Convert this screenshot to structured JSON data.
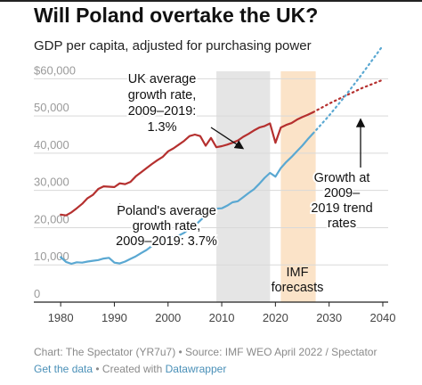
{
  "title": "Will Poland overtake the UK?",
  "subtitle": "GDP per capita, adjusted for purchasing power",
  "colors": {
    "uk": "#b5302f",
    "poland": "#5aa8d2",
    "band_gray": "#e5e5e5",
    "band_orange": "#fbe3c8",
    "grid": "#d9d9d9"
  },
  "chart_data": {
    "type": "line",
    "xlabel": "",
    "ylabel": "",
    "xlim": [
      1975,
      2041
    ],
    "ylim": [
      0,
      62000
    ],
    "x_ticks": [
      "1980",
      "1990",
      "2000",
      "2010",
      "2020",
      "2030",
      "2040"
    ],
    "y_ticks": [
      "0",
      "10,000",
      "20,000",
      "30,000",
      "40,000",
      "50,000",
      "$60,000"
    ],
    "y_tick_values": [
      0,
      10000,
      20000,
      30000,
      40000,
      50000,
      60000
    ],
    "shaded_periods": [
      {
        "from": 2009,
        "to": 2019,
        "color": "gray"
      },
      {
        "from": 2021,
        "to": 2027.5,
        "color": "orange"
      }
    ],
    "series": [
      {
        "name": "UK",
        "style": "solid",
        "x": [
          1980,
          1981,
          1982,
          1983,
          1984,
          1985,
          1986,
          1987,
          1988,
          1989,
          1990,
          1991,
          1992,
          1993,
          1994,
          1995,
          1996,
          1997,
          1998,
          1999,
          2000,
          2001,
          2002,
          2003,
          2004,
          2005,
          2006,
          2007,
          2008,
          2009,
          2010,
          2011,
          2012,
          2013,
          2014,
          2015,
          2016,
          2017,
          2018,
          2019,
          2020,
          2021,
          2022,
          2023,
          2024,
          2025,
          2026,
          2027
        ],
        "y": [
          23500,
          23300,
          24100,
          25200,
          26400,
          27900,
          28800,
          30400,
          31100,
          31000,
          30900,
          31900,
          31700,
          32300,
          33800,
          34900,
          36000,
          37100,
          38100,
          39000,
          40500,
          41300,
          42300,
          43300,
          44600,
          45000,
          44600,
          42000,
          44100,
          41600,
          41900,
          42300,
          42800,
          43400,
          44400,
          45200,
          46100,
          46900,
          47300,
          48000,
          42800,
          46900,
          47600,
          48100,
          49000,
          49700,
          50300,
          51000
        ]
      },
      {
        "name": "UK",
        "style": "dotted",
        "x": [
          2027,
          2030,
          2033,
          2036,
          2040
        ],
        "y": [
          51000,
          53300,
          55400,
          57400,
          59700
        ]
      },
      {
        "name": "Poland",
        "style": "solid",
        "x": [
          1980,
          1981,
          1982,
          1983,
          1984,
          1985,
          1986,
          1987,
          1988,
          1989,
          1990,
          1991,
          1992,
          1993,
          1994,
          1995,
          1996,
          1997,
          1998,
          1999,
          2000,
          2001,
          2002,
          2003,
          2004,
          2005,
          2006,
          2007,
          2008,
          2009,
          2010,
          2011,
          2012,
          2013,
          2014,
          2015,
          2016,
          2017,
          2018,
          2019,
          2020,
          2021,
          2022,
          2023,
          2024,
          2025,
          2026,
          2027
        ],
        "y": [
          12100,
          10800,
          10300,
          10700,
          10600,
          10900,
          11100,
          11300,
          11700,
          11900,
          10600,
          10400,
          10900,
          11600,
          12300,
          13200,
          14000,
          15100,
          16000,
          16600,
          17200,
          17500,
          17900,
          18600,
          19800,
          20600,
          21900,
          23300,
          24300,
          25100,
          25200,
          25900,
          26800,
          27100,
          28200,
          29300,
          30300,
          31800,
          33400,
          34700,
          33700,
          36000,
          37600,
          39000,
          40500,
          42000,
          43700,
          45300
        ]
      },
      {
        "name": "Poland",
        "style": "dotted",
        "x": [
          2027,
          2030,
          2033,
          2036,
          2040
        ],
        "y": [
          45300,
          50100,
          55400,
          61000,
          68900
        ]
      }
    ],
    "annotations": [
      {
        "lines": [
          "UK average",
          "growth rate,",
          "2009–2019:",
          "1.3%"
        ]
      },
      {
        "lines": [
          "Poland's average",
          "growth rate,",
          "2009–2019: 3.7%"
        ]
      },
      {
        "lines": [
          "Growth at",
          "2009–",
          "2019 trend",
          "rates"
        ]
      },
      {
        "lines": [
          "IMF",
          "forecasts"
        ]
      }
    ]
  },
  "footer": {
    "line1": "Chart: The Spectator (YR7u7) • Source: IMF WEO April 2022 / Spectator",
    "get_data": "Get the data",
    "created_with": " • Created with ",
    "datawrapper": "Datawrapper"
  }
}
